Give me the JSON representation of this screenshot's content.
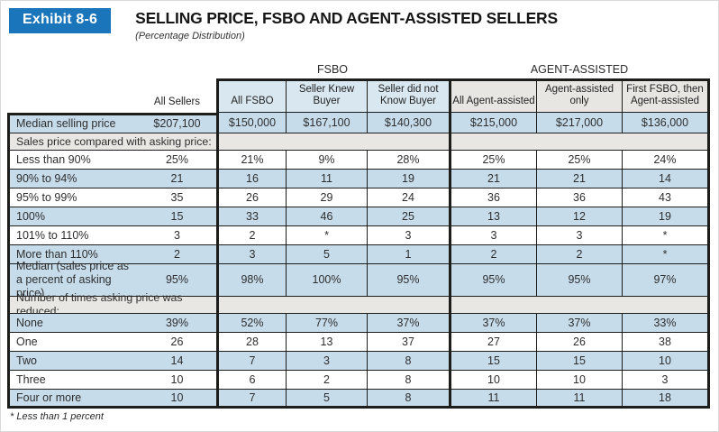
{
  "exhibit": {
    "badge": "Exhibit 8-6",
    "title": "SELLING PRICE, FSBO AND AGENT-ASSISTED SELLERS",
    "subtitle": "(Percentage Distribution)"
  },
  "table": {
    "groups": {
      "fsbo": "FSBO",
      "agent": "AGENT-ASSISTED"
    },
    "columns": [
      "All Sellers",
      "All FSBO",
      "Seller Knew Buyer",
      "Seller did not Know Buyer",
      "All Agent-assisted",
      "Agent-assisted only",
      "First FSBO, then Agent-assisted"
    ],
    "rows": [
      {
        "label": "Median selling price",
        "type": "blue",
        "values": [
          "$207,100",
          "$150,000",
          "$167,100",
          "$140,300",
          "$215,000",
          "$217,000",
          "$136,000"
        ]
      },
      {
        "label": "Sales price compared with asking price:",
        "type": "section",
        "values": []
      },
      {
        "label": "Less than 90%",
        "type": "white",
        "values": [
          "25%",
          "21%",
          "9%",
          "28%",
          "25%",
          "25%",
          "24%"
        ]
      },
      {
        "label": "90% to 94%",
        "type": "blue",
        "values": [
          "21",
          "16",
          "11",
          "19",
          "21",
          "21",
          "14"
        ]
      },
      {
        "label": "95% to 99%",
        "type": "white",
        "values": [
          "35",
          "26",
          "29",
          "24",
          "36",
          "36",
          "43"
        ]
      },
      {
        "label": "100%",
        "type": "blue",
        "values": [
          "15",
          "33",
          "46",
          "25",
          "13",
          "12",
          "19"
        ]
      },
      {
        "label": "101% to 110%",
        "type": "white",
        "values": [
          "3",
          "2",
          "*",
          "3",
          "3",
          "3",
          "*"
        ]
      },
      {
        "label": "More than 110%",
        "type": "blue",
        "values": [
          "2",
          "3",
          "5",
          "1",
          "2",
          "2",
          "*"
        ]
      },
      {
        "label": "Median (sales price as a percent of asking price)",
        "type": "blue",
        "tall": true,
        "values": [
          "95%",
          "98%",
          "100%",
          "95%",
          "95%",
          "95%",
          "97%"
        ]
      },
      {
        "label": "Number of times asking price was reduced:",
        "type": "section",
        "values": []
      },
      {
        "label": "None",
        "type": "blue",
        "values": [
          "39%",
          "52%",
          "77%",
          "37%",
          "37%",
          "37%",
          "33%"
        ]
      },
      {
        "label": "One",
        "type": "white",
        "values": [
          "26",
          "28",
          "13",
          "37",
          "27",
          "26",
          "38"
        ]
      },
      {
        "label": "Two",
        "type": "blue",
        "values": [
          "14",
          "7",
          "3",
          "8",
          "15",
          "15",
          "10"
        ]
      },
      {
        "label": "Three",
        "type": "white",
        "values": [
          "10",
          "6",
          "2",
          "8",
          "10",
          "10",
          "3"
        ]
      },
      {
        "label": "Four or more",
        "type": "blue",
        "values": [
          "10",
          "7",
          "5",
          "8",
          "11",
          "11",
          "18"
        ]
      }
    ]
  },
  "footnote": "* Less than 1 percent",
  "colors": {
    "badge_blue": "#1b75bb",
    "row_blue": "#c7dcea",
    "header_blue": "#d9e7f1",
    "header_grey": "#e7e6e3",
    "section_grey": "#e8e7e3",
    "border_dark": "#1d1d1b"
  }
}
